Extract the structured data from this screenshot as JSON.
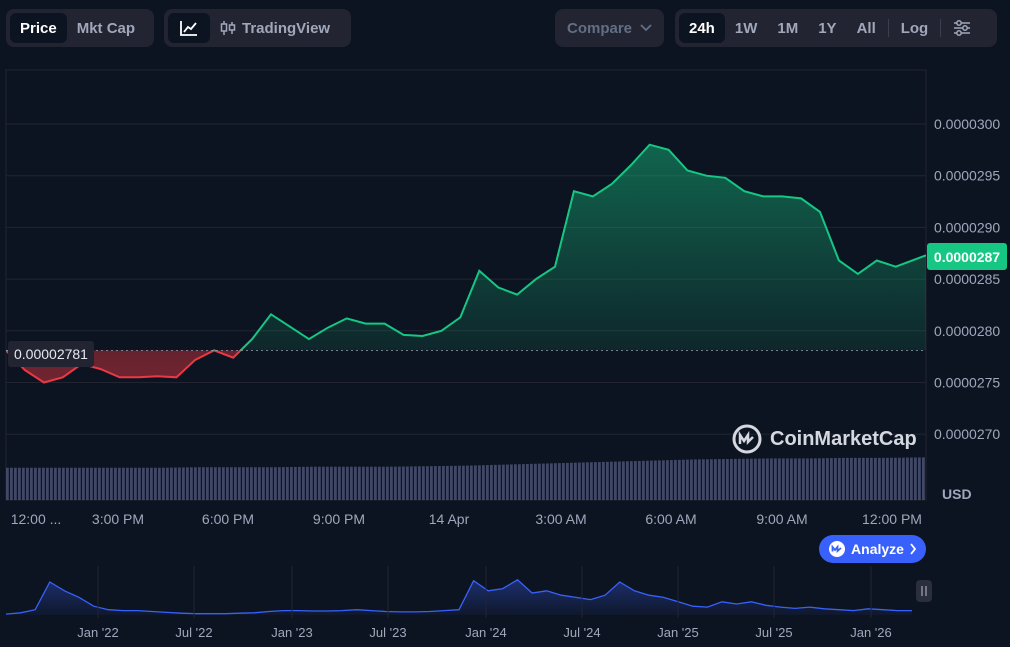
{
  "toolbar": {
    "price_tab": "Price",
    "mktcap_tab": "Mkt Cap",
    "tradingview_label": "TradingView",
    "compare_label": "Compare",
    "ranges": [
      "24h",
      "1W",
      "1M",
      "1Y",
      "All"
    ],
    "active_range": "24h",
    "log_label": "Log"
  },
  "labels": {
    "open_price": "0.00002781",
    "last_price": "0.0000287",
    "currency": "USD",
    "watermark": "CoinMarketCap",
    "analyze": "Analyze"
  },
  "colors": {
    "background": "#0d1421",
    "up": "#16c784",
    "down": "#ea3943",
    "volume": "#4a5171",
    "navigator_line": "#3861fb",
    "accent": "#3861fb"
  },
  "chart_data": [
    {
      "type": "area",
      "title": "",
      "ylabel": "USD",
      "ylim": [
        2.67e-05,
        3.04e-05
      ],
      "y_ticks": [
        "0.0000270",
        "0.0000275",
        "0.0000280",
        "0.0000285",
        "0.0000290",
        "0.0000295",
        "0.0000300"
      ],
      "x_ticks": [
        "12:00 ...",
        "3:00 PM",
        "6:00 PM",
        "9:00 PM",
        "14 Apr",
        "3:00 AM",
        "6:00 AM",
        "9:00 AM",
        "12:00 PM"
      ],
      "baseline": 2.781e-05,
      "last_value": 2.87e-05,
      "x": [
        0,
        0.5,
        1,
        1.5,
        2,
        2.5,
        3,
        3.5,
        4,
        4.5,
        5,
        5.5,
        6,
        6.5,
        7,
        7.5,
        8,
        8.5,
        9,
        9.5,
        10,
        10.5,
        11,
        11.5,
        12,
        12.5,
        13,
        13.5,
        14,
        14.5,
        15,
        15.5,
        16,
        16.5,
        17,
        17.5,
        18,
        18.5,
        19,
        19.5,
        20,
        20.5,
        21,
        21.5,
        22,
        22.5,
        23,
        23.5,
        24.3
      ],
      "series": [
        {
          "values": [
            2.781e-05,
            2.762e-05,
            2.75e-05,
            2.755e-05,
            2.768e-05,
            2.763e-05,
            2.755e-05,
            2.755e-05,
            2.756e-05,
            2.755e-05,
            2.772e-05,
            2.781e-05,
            2.774e-05,
            2.792e-05,
            2.816e-05,
            2.804e-05,
            2.792e-05,
            2.803e-05,
            2.812e-05,
            2.807e-05,
            2.807e-05,
            2.796e-05,
            2.795e-05,
            2.8e-05,
            2.813e-05,
            2.858e-05,
            2.842e-05,
            2.835e-05,
            2.85e-05,
            2.862e-05,
            2.935e-05,
            2.93e-05,
            2.942e-05,
            2.96e-05,
            2.98e-05,
            2.975e-05,
            2.955e-05,
            2.95e-05,
            2.948e-05,
            2.935e-05,
            2.93e-05,
            2.93e-05,
            2.928e-05,
            2.915e-05,
            2.868e-05,
            2.855e-05,
            2.868e-05,
            2.862e-05,
            2.873e-05
          ]
        }
      ]
    },
    {
      "type": "bar",
      "title": "",
      "note": "volume bars (no scale printed)",
      "values_relative": [
        0.62,
        0.62,
        0.62,
        0.62,
        0.62,
        0.63,
        0.63,
        0.63,
        0.64,
        0.64,
        0.64,
        0.65,
        0.66,
        0.68,
        0.7,
        0.72,
        0.74,
        0.76,
        0.78,
        0.79,
        0.8,
        0.8,
        0.81,
        0.81,
        0.82
      ]
    },
    {
      "type": "area",
      "title": "",
      "note": "navigator (all-time history, no y-scale printed)",
      "x_ticks": [
        "Jan '22",
        "Jul '22",
        "Jan '23",
        "Jul '23",
        "Jan '24",
        "Jul '24",
        "Jan '25",
        "Jul '25",
        "Jan '26"
      ],
      "values_relative": [
        0.02,
        0.05,
        0.12,
        0.75,
        0.55,
        0.4,
        0.2,
        0.12,
        0.1,
        0.1,
        0.08,
        0.06,
        0.04,
        0.03,
        0.03,
        0.03,
        0.04,
        0.05,
        0.08,
        0.1,
        0.1,
        0.09,
        0.09,
        0.1,
        0.12,
        0.1,
        0.08,
        0.07,
        0.07,
        0.08,
        0.1,
        0.12,
        0.78,
        0.55,
        0.6,
        0.8,
        0.5,
        0.55,
        0.45,
        0.4,
        0.35,
        0.45,
        0.75,
        0.55,
        0.45,
        0.4,
        0.3,
        0.2,
        0.18,
        0.3,
        0.25,
        0.3,
        0.22,
        0.18,
        0.15,
        0.18,
        0.14,
        0.12,
        0.1,
        0.14,
        0.12,
        0.1,
        0.1
      ]
    }
  ]
}
